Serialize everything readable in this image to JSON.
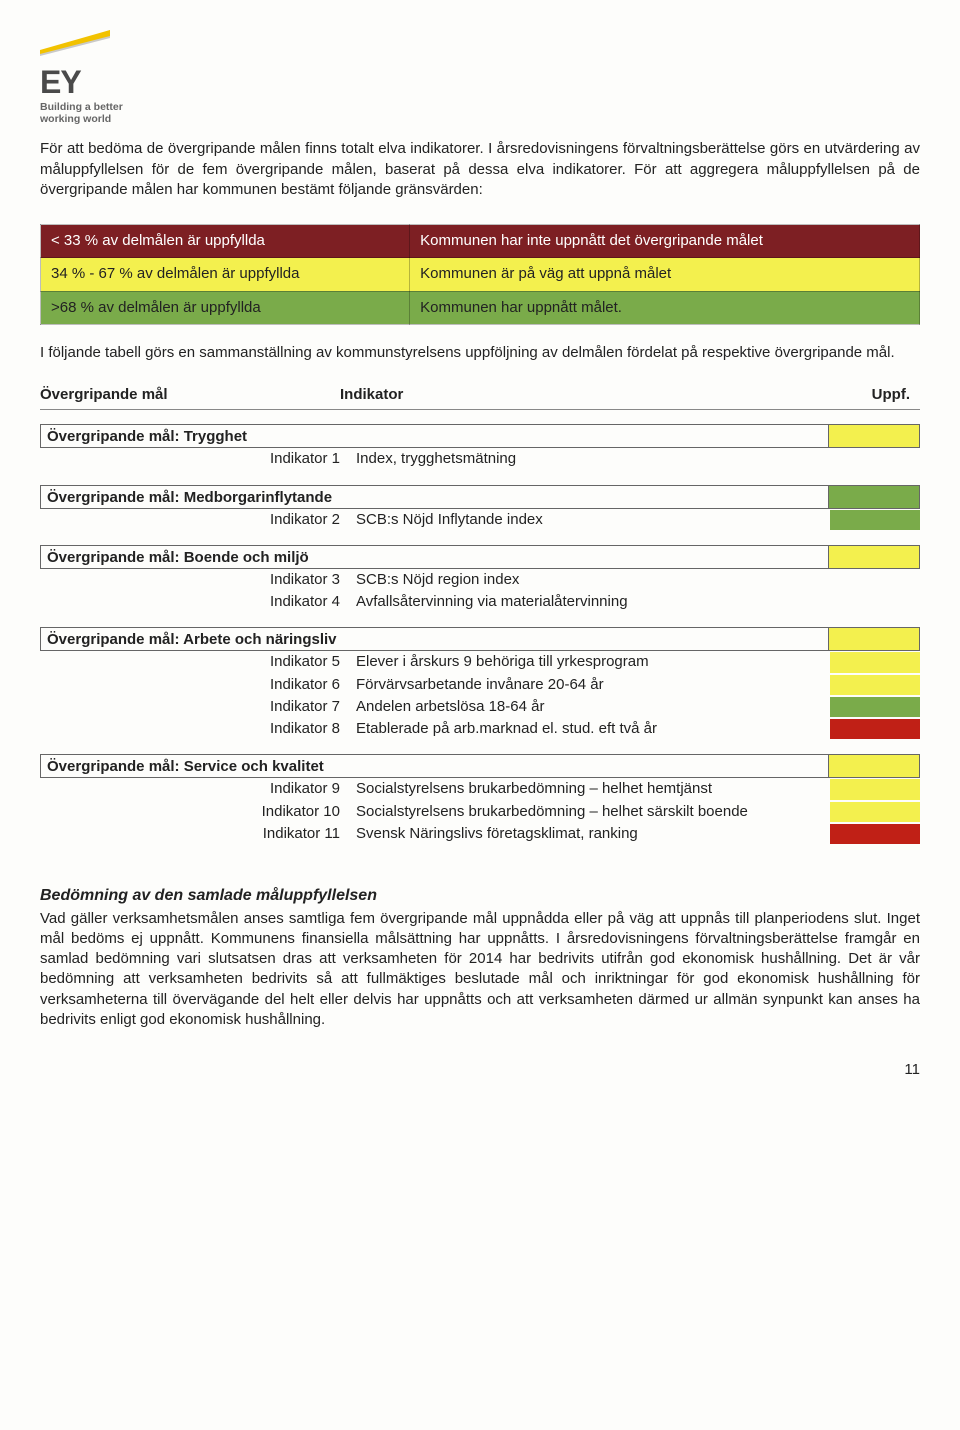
{
  "logo": {
    "name": "EY",
    "tagline1": "Building a better",
    "tagline2": "working world",
    "mark_color": "#f2c200",
    "mark_shadow": "#6b6b6b"
  },
  "paragraphs": {
    "p1": "För att bedöma de övergripande målen finns totalt elva indikatorer. I årsredovisningens förvaltningsberättelse görs en utvärdering av måluppfyllelsen för de fem övergripande målen, baserat på dessa elva indikatorer. För att aggregera måluppfyllelsen på de övergripande målen har kommunen bestämt följande gränsvärden:",
    "p2": "I följande tabell görs en sammanställning av kommunstyrelsens uppföljning av delmålen fördelat på respektive övergripande mål."
  },
  "thresholds": [
    {
      "range": "< 33 % av delmålen är uppfyllda",
      "meaning": "Kommunen har inte uppnått det övergripande målet",
      "class": "r-red"
    },
    {
      "range": "34 % - 67 % av delmålen är uppfyllda",
      "meaning": "Kommunen är på väg att uppnå målet",
      "class": "r-yellow"
    },
    {
      "range": ">68 % av delmålen är uppfyllda",
      "meaning": "Kommunen har uppnått målet.",
      "class": "r-green"
    }
  ],
  "headers": {
    "goal": "Övergripande mål",
    "indicator": "Indikator",
    "uppf": "Uppf."
  },
  "goals": [
    {
      "title": "Övergripande mål: Trygghet",
      "swatch": "sw-yellow",
      "indicators": [
        {
          "label": "Indikator 1",
          "desc": "Index, trygghetsmätning",
          "swatch": "sw-empty"
        }
      ]
    },
    {
      "title": "Övergripande mål: Medborgarinflytande",
      "swatch": "sw-green",
      "indicators": [
        {
          "label": "Indikator 2",
          "desc": "SCB:s Nöjd Inflytande index",
          "swatch": "sw-green"
        }
      ]
    },
    {
      "title": "Övergripande mål: Boende och miljö",
      "swatch": "sw-yellow",
      "indicators": [
        {
          "label": "Indikator 3",
          "desc": "SCB:s Nöjd region index",
          "swatch": "sw-empty"
        },
        {
          "label": "Indikator 4",
          "desc": "Avfallsåtervinning via materialåtervinning",
          "swatch": "sw-empty"
        }
      ]
    },
    {
      "title": "Övergripande mål: Arbete och näringsliv",
      "swatch": "sw-yellow",
      "indicators": [
        {
          "label": "Indikator 5",
          "desc": "Elever i årskurs 9 behöriga till yrkesprogram",
          "swatch": "sw-yellow"
        },
        {
          "label": "Indikator 6",
          "desc": "Förvärvsarbetande invånare 20-64 år",
          "swatch": "sw-yellow"
        },
        {
          "label": "Indikator 7",
          "desc": "Andelen arbetslösa 18-64 år",
          "swatch": "sw-green"
        },
        {
          "label": "Indikator 8",
          "desc": "Etablerade på arb.marknad el. stud. eft två år",
          "swatch": "sw-red"
        }
      ]
    },
    {
      "title": "Övergripande mål: Service och kvalitet",
      "swatch": "sw-yellow",
      "indicators": [
        {
          "label": "Indikator 9",
          "desc": "Socialstyrelsens brukarbedömning – helhet hemtjänst",
          "swatch": "sw-yellow"
        },
        {
          "label": "Indikator 10",
          "desc": "Socialstyrelsens brukarbedömning – helhet särskilt boende",
          "swatch": "sw-yellow"
        },
        {
          "label": "Indikator 11",
          "desc": "Svensk Näringslivs företagsklimat, ranking",
          "swatch": "sw-red"
        }
      ]
    }
  ],
  "assessment": {
    "heading": "Bedömning av den samlade måluppfyllelsen",
    "body": "Vad gäller verksamhetsmålen anses samtliga fem övergripande mål uppnådda eller på väg att uppnås till planperiodens slut. Inget mål bedöms ej uppnått. Kommunens finansiella målsättning har uppnåtts. I årsredovisningens förvaltningsberättelse framgår en samlad bedömning vari slutsatsen dras att verksamheten för 2014 har bedrivits utifrån god ekonomisk hushållning. Det är vår bedömning att verksamheten bedrivits så att fullmäktiges beslutade mål och inriktningar för god ekonomisk hushållning för verksamheterna till övervägande del helt eller delvis har uppnåtts och att verksamheten därmed ur allmän synpunkt kan anses ha bedrivits enligt god ekonomisk hushållning."
  },
  "page_number": "11",
  "colors": {
    "red_row": "#7d1f23",
    "yellow": "#f3f04e",
    "green": "#7aab4a",
    "bright_red": "#c02016"
  }
}
